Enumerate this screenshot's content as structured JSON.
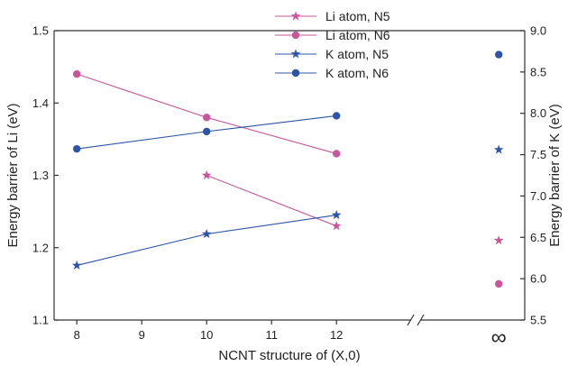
{
  "chart_data": {
    "type": "line",
    "xlabel": "NCNT structure of (X,0)",
    "ylabel_left": "Energy barrier of Li (eV)",
    "ylabel_right": "Energy barrier of K (eV)",
    "x_ticks": [
      "8",
      "9",
      "10",
      "11",
      "12"
    ],
    "x_break_label": "∞",
    "xlim": [
      7.65,
      14.9
    ],
    "ylim_left": [
      1.1,
      1.5
    ],
    "ylim_right": [
      5.5,
      9.0
    ],
    "y_ticks_left": [
      "1.1",
      "1.2",
      "1.3",
      "1.4",
      "1.5"
    ],
    "y_ticks_right": [
      "5.5",
      "6.0",
      "6.5",
      "7.0",
      "7.5",
      "8.0",
      "8.5",
      "9.0"
    ],
    "grid": false,
    "legend_position": "top-center",
    "series": [
      {
        "name": "Li atom, N5",
        "axis": "left",
        "marker": "star",
        "color": "#c9559b",
        "x": [
          10,
          12
        ],
        "y": [
          1.3,
          1.23
        ],
        "infinity_value": 1.21
      },
      {
        "name": "Li atom, N6",
        "axis": "left",
        "marker": "circle",
        "color": "#c9559b",
        "x": [
          8,
          10,
          12
        ],
        "y": [
          1.44,
          1.38,
          1.33
        ],
        "infinity_value": 1.15
      },
      {
        "name": "K atom, N5",
        "axis": "right",
        "marker": "star",
        "color": "#2d54a6",
        "x": [
          8,
          10,
          12
        ],
        "y": [
          6.16,
          6.54,
          6.77
        ],
        "infinity_value": 7.56
      },
      {
        "name": "K atom, N6",
        "axis": "right",
        "marker": "circle",
        "color": "#2d54a6",
        "x": [
          8,
          10,
          12
        ],
        "y": [
          7.57,
          7.78,
          7.97
        ],
        "infinity_value": 8.71
      }
    ]
  }
}
